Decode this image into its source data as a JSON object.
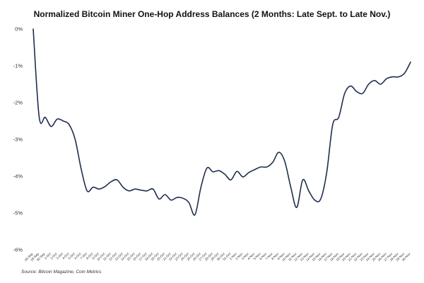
{
  "chart_data": {
    "type": "line",
    "title": "Normalized Bitcoin Miner One-Hop Address Balances (2 Months: Late Sept. to Late Nov.)",
    "source": "Source: Bitcoin Magazine, Coin Metrics",
    "xlabel": "",
    "ylabel": "",
    "ylim": [
      -6,
      0
    ],
    "yticks": [
      0,
      -1,
      -2,
      -3,
      -4,
      -5,
      -6
    ],
    "ytick_labels": [
      "0%",
      "-1%",
      "-2%",
      "-3%",
      "-4%",
      "-5%",
      "-6%"
    ],
    "grid": false,
    "legend": "none",
    "line_color": "#1f2d4d",
    "categories": [
      "28-Sep",
      "29-Sep",
      "30-Sep",
      "1-Oct",
      "2-Oct",
      "3-Oct",
      "4-Oct",
      "5-Oct",
      "6-Oct",
      "7-Oct",
      "8-Oct",
      "9-Oct",
      "10-Oct",
      "11-Oct",
      "12-Oct",
      "13-Oct",
      "14-Oct",
      "15-Oct",
      "16-Oct",
      "17-Oct",
      "18-Oct",
      "19-Oct",
      "20-Oct",
      "21-Oct",
      "22-Oct",
      "23-Oct",
      "24-Oct",
      "25-Oct",
      "26-Oct",
      "27-Oct",
      "28-Oct",
      "29-Oct",
      "30-Oct",
      "31-Oct",
      "1-Nov",
      "2-Nov",
      "3-Nov",
      "4-Nov",
      "5-Nov",
      "6-Nov",
      "7-Nov",
      "8-Nov",
      "9-Nov",
      "10-Nov",
      "11-Nov",
      "12-Nov",
      "13-Nov",
      "14-Nov",
      "15-Nov",
      "16-Nov",
      "17-Nov",
      "18-Nov",
      "19-Nov",
      "20-Nov",
      "21-Nov",
      "22-Nov",
      "23-Nov",
      "24-Nov",
      "25-Nov",
      "26-Nov",
      "27-Nov",
      "28-Nov",
      "29-Nov",
      "30-Nov"
    ],
    "series": [
      {
        "values": [
          0,
          -2.4,
          -2.4,
          -2.65,
          -2.45,
          -2.5,
          -2.6,
          -3.0,
          -3.8,
          -4.4,
          -4.3,
          -4.35,
          -4.28,
          -4.15,
          -4.1,
          -4.3,
          -4.4,
          -4.35,
          -4.38,
          -4.4,
          -4.35,
          -4.62,
          -4.5,
          -4.65,
          -4.58,
          -4.6,
          -4.72,
          -5.05,
          -4.3,
          -3.78,
          -3.88,
          -3.85,
          -3.95,
          -4.1,
          -3.87,
          -4.02,
          -3.9,
          -3.82,
          -3.75,
          -3.75,
          -3.62,
          -3.35,
          -3.6,
          -4.3,
          -4.85,
          -4.1,
          -4.4,
          -4.65,
          -4.62,
          -3.9,
          -2.6,
          -2.4,
          -1.75,
          -1.55,
          -1.7,
          -1.75,
          -1.5,
          -1.4,
          -1.5,
          -1.35,
          -1.3,
          -1.3,
          -1.2,
          -0.9
        ]
      }
    ]
  }
}
